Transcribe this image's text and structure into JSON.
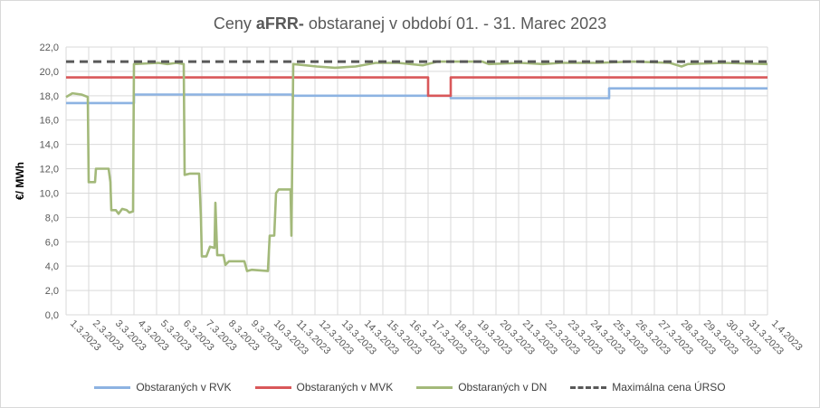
{
  "chart_data": {
    "type": "line",
    "title_prefix": "Ceny ",
    "title_bold": "aFRR-",
    "title_suffix": " obstaranej v období 01. - 31. Marec 2023",
    "ylabel": "€/ MWh",
    "xlabel": "",
    "ylim": [
      0,
      22
    ],
    "yticks": [
      "0,0",
      "2,0",
      "4,0",
      "6,0",
      "8,0",
      "10,0",
      "12,0",
      "14,0",
      "16,0",
      "18,0",
      "20,0",
      "22,0"
    ],
    "xticks": [
      "1.3.2023",
      "2.3.2023",
      "3.3.2023",
      "4.3.2023",
      "5.3.2023",
      "6.3.2023",
      "7.3.2023",
      "8.3.2023",
      "9.3.2023",
      "10.3.2023",
      "11.3.2023",
      "12.3.2023",
      "13.3.2023",
      "14.3.2023",
      "15.3.2023",
      "16.3.2023",
      "17.3.2023",
      "18.3.2023",
      "19.3.2023",
      "20.3.2023",
      "21.3.2023",
      "22.3.2023",
      "23.3.2023",
      "24.3.2023",
      "25.3.2023",
      "26.3.2023",
      "27.3.2023",
      "28.3.2023",
      "29.3.2023",
      "30.3.2023",
      "31.3.2023",
      "1.4.2023"
    ],
    "xlim": [
      "1.3.2023",
      "1.4.2023"
    ],
    "grid": true,
    "legend_position": "bottom",
    "series": [
      {
        "name": "Obstaraných v RVK",
        "color": "#8db3e2",
        "dash": false,
        "points": [
          [
            "1.3.2023",
            17.4
          ],
          [
            "4.3.2023",
            17.4
          ],
          [
            "4.3.2023",
            18.1
          ],
          [
            "11.3.2023",
            18.1
          ],
          [
            "11.3.2023",
            18.0
          ],
          [
            "18.3.2023",
            18.0
          ],
          [
            "18.3.2023",
            17.8
          ],
          [
            "25.3.2023",
            17.8
          ],
          [
            "25.3.2023",
            18.6
          ],
          [
            "1.4.2023",
            18.6
          ]
        ]
      },
      {
        "name": "Obstaraných v MVK",
        "color": "#d9585a",
        "dash": false,
        "points": [
          [
            "1.3.2023",
            19.5
          ],
          [
            "17.3.2023",
            19.5
          ],
          [
            "17.3.2023",
            18.0
          ],
          [
            "18.3.2023",
            18.0
          ],
          [
            "18.3.2023",
            19.5
          ],
          [
            "1.4.2023",
            19.5
          ]
        ]
      },
      {
        "name": "Obstaraných v DN",
        "color": "#a3b97a",
        "dash": false,
        "points_day_of_march": [
          [
            1.0,
            17.9
          ],
          [
            1.28,
            18.2
          ],
          [
            1.68,
            18.1
          ],
          [
            1.96,
            17.9
          ],
          [
            2.0,
            10.9
          ],
          [
            2.28,
            10.9
          ],
          [
            2.32,
            12.0
          ],
          [
            2.88,
            12.0
          ],
          [
            2.96,
            10.9
          ],
          [
            3.0,
            8.6
          ],
          [
            3.2,
            8.6
          ],
          [
            3.32,
            8.3
          ],
          [
            3.48,
            8.7
          ],
          [
            3.68,
            8.6
          ],
          [
            3.8,
            8.4
          ],
          [
            3.96,
            8.5
          ],
          [
            4.0,
            20.6
          ],
          [
            5.08,
            20.7
          ],
          [
            5.48,
            20.6
          ],
          [
            5.88,
            20.7
          ],
          [
            6.2,
            20.6
          ],
          [
            6.24,
            11.5
          ],
          [
            6.48,
            11.6
          ],
          [
            6.88,
            11.6
          ],
          [
            6.96,
            8.0
          ],
          [
            7.0,
            4.8
          ],
          [
            7.2,
            4.8
          ],
          [
            7.36,
            5.6
          ],
          [
            7.56,
            5.5
          ],
          [
            7.6,
            9.2
          ],
          [
            7.68,
            4.9
          ],
          [
            7.96,
            4.9
          ],
          [
            8.04,
            4.1
          ],
          [
            8.2,
            4.4
          ],
          [
            8.88,
            4.4
          ],
          [
            9.0,
            3.6
          ],
          [
            9.2,
            3.7
          ],
          [
            9.92,
            3.6
          ],
          [
            10.0,
            6.5
          ],
          [
            10.2,
            6.5
          ],
          [
            10.28,
            10.0
          ],
          [
            10.4,
            10.3
          ],
          [
            10.92,
            10.3
          ],
          [
            10.96,
            6.5
          ],
          [
            11.04,
            20.6
          ],
          [
            12.08,
            20.4
          ],
          [
            12.88,
            20.3
          ],
          [
            13.8,
            20.4
          ],
          [
            14.68,
            20.7
          ],
          [
            15.68,
            20.7
          ],
          [
            16.76,
            20.5
          ],
          [
            17.4,
            20.8
          ],
          [
            19.4,
            20.8
          ],
          [
            19.68,
            20.6
          ],
          [
            21.08,
            20.7
          ],
          [
            22.08,
            20.6
          ],
          [
            22.88,
            20.7
          ],
          [
            24.48,
            20.7
          ],
          [
            26.08,
            20.8
          ],
          [
            27.68,
            20.7
          ],
          [
            28.2,
            20.4
          ],
          [
            28.48,
            20.6
          ],
          [
            30.08,
            20.7
          ],
          [
            32.0,
            20.6
          ]
        ]
      },
      {
        "name": "Maximálna cena ÚRSO",
        "color": "#595959",
        "dash": true,
        "points": [
          [
            "1.3.2023",
            20.8
          ],
          [
            "1.4.2023",
            20.8
          ]
        ]
      }
    ]
  }
}
